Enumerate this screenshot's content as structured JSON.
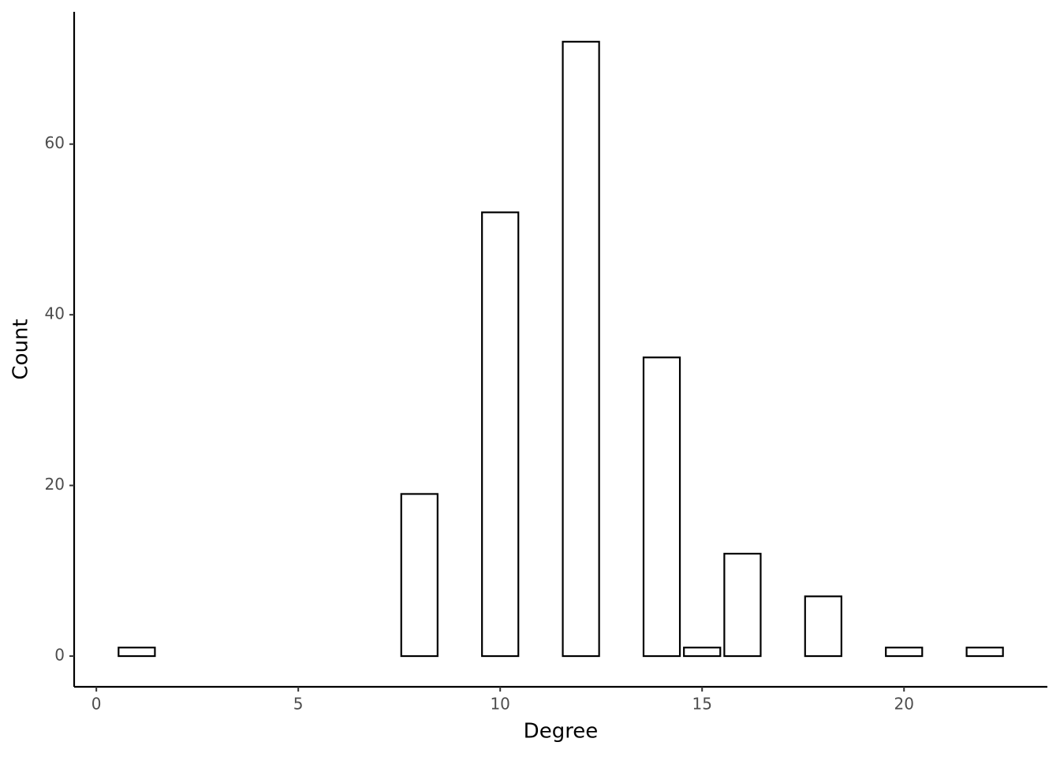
{
  "chart_data": {
    "type": "bar",
    "x_label": "Degree",
    "y_label": "Count",
    "x": [
      1,
      8,
      10,
      12,
      14,
      15,
      16,
      18,
      20,
      22
    ],
    "values": [
      1,
      19,
      52,
      72,
      35,
      1,
      12,
      7,
      1,
      1
    ],
    "color": "#ffffff",
    "edge_color": "#000000",
    "xlim": [
      -0.55,
      23.55
    ],
    "xticks": [
      0,
      5,
      10,
      15,
      20
    ],
    "ylim": [
      -3.6,
      75.5
    ],
    "yticks": [
      0,
      20,
      40,
      60
    ],
    "grid": false
  }
}
